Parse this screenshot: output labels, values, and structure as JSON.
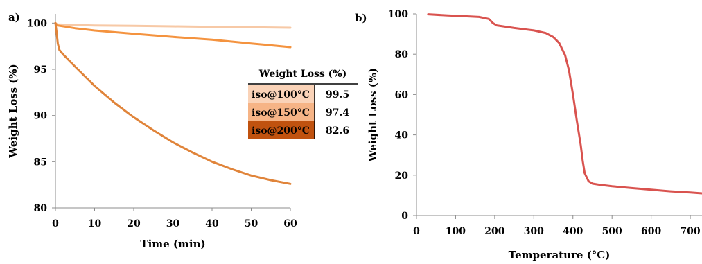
{
  "chart_data": [
    {
      "panel": "a)",
      "type": "line",
      "title": "",
      "xlabel": "Time (min)",
      "ylabel": "Weight Loss (%)",
      "xlim": [
        0,
        60
      ],
      "ylim": [
        80,
        101
      ],
      "x_ticks": [
        0,
        10,
        20,
        30,
        40,
        50,
        60
      ],
      "y_ticks": [
        80,
        85,
        90,
        95,
        100
      ],
      "series": [
        {
          "color": "#f7c9a6",
          "x": [
            0,
            0.5,
            5,
            10,
            20,
            30,
            40,
            50,
            60
          ],
          "y": [
            100,
            99.85,
            99.8,
            99.75,
            99.7,
            99.65,
            99.6,
            99.55,
            99.5
          ]
        },
        {
          "color": "#f4933f",
          "x": [
            0,
            0.5,
            5,
            10,
            20,
            30,
            40,
            50,
            60
          ],
          "y": [
            100,
            99.75,
            99.45,
            99.2,
            98.85,
            98.5,
            98.2,
            97.8,
            97.4
          ]
        },
        {
          "color": "#e0843a",
          "x": [
            0,
            0.3,
            0.6,
            1,
            2,
            5,
            10,
            15,
            20,
            25,
            30,
            35,
            40,
            45,
            50,
            55,
            60
          ],
          "y": [
            100,
            99,
            97.8,
            97.1,
            96.6,
            95.3,
            93.2,
            91.4,
            89.8,
            88.4,
            87.1,
            86.0,
            85.0,
            84.2,
            83.5,
            83.0,
            82.6
          ]
        }
      ],
      "table": {
        "header": "Weight Loss (%)",
        "rows": [
          {
            "label": "iso@100°C",
            "value": "99.5",
            "fill": "#fad3b8"
          },
          {
            "label": "iso@150°C",
            "value": "97.4",
            "fill": "#f6b486"
          },
          {
            "label": "iso@200°C",
            "value": "82.6",
            "fill": "#c0520f"
          }
        ]
      }
    },
    {
      "panel": "b)",
      "type": "line",
      "title": "",
      "xlabel": "Temperature (°C)",
      "ylabel": "Weight Loss (%)",
      "xlim": [
        0,
        730
      ],
      "ylim": [
        0,
        100
      ],
      "x_ticks": [
        0,
        100,
        200,
        300,
        400,
        500,
        600,
        700
      ],
      "y_ticks": [
        0,
        20,
        40,
        60,
        80,
        100
      ],
      "series": [
        {
          "color": "#d9534f",
          "x": [
            30,
            80,
            120,
            160,
            185,
            195,
            205,
            250,
            300,
            330,
            350,
            365,
            380,
            390,
            400,
            410,
            420,
            425,
            430,
            440,
            450,
            470,
            500,
            550,
            600,
            650,
            700,
            730
          ],
          "y": [
            99.8,
            99.2,
            98.9,
            98.5,
            97.5,
            95.5,
            94.3,
            93.0,
            91.8,
            90.5,
            88.5,
            85.5,
            79.5,
            72.0,
            60.0,
            47.0,
            35.0,
            27.0,
            21.0,
            17.0,
            15.8,
            15.2,
            14.5,
            13.6,
            12.8,
            12.0,
            11.4,
            11.0
          ]
        }
      ]
    }
  ]
}
